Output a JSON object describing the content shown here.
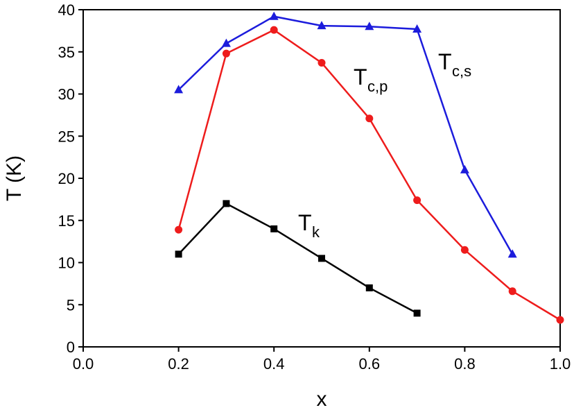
{
  "chart_data": {
    "type": "line",
    "x_label": "x",
    "y_label": "T (K)",
    "xlim": [
      0,
      1
    ],
    "xticks": [
      {
        "value": 0,
        "label": "0.0"
      },
      0.2,
      0.4,
      0.6,
      0.8,
      {
        "value": 1,
        "label": "1.0"
      }
    ],
    "ylim": [
      0,
      40
    ],
    "yticks": [
      0,
      5,
      10,
      15,
      20,
      25,
      30,
      35,
      40
    ],
    "series": [
      {
        "label": "T",
        "label_sub": "k",
        "color": "#000000",
        "marker": "square",
        "x": [
          0.2,
          0.3,
          0.4,
          0.5,
          0.6,
          0.7
        ],
        "values": [
          11,
          17,
          14,
          10.5,
          7,
          4
        ]
      },
      {
        "label": "T",
        "label_sub": "c,p",
        "color": "#ee1c1c",
        "marker": "circle",
        "x": [
          0.2,
          0.3,
          0.4,
          0.5,
          0.6,
          0.7,
          0.8,
          0.9,
          1.0
        ],
        "values": [
          13.9,
          34.8,
          37.6,
          33.7,
          27.1,
          17.4,
          11.5,
          6.6,
          3.2
        ]
      },
      {
        "label": "T",
        "label_sub": "c,s",
        "color": "#1c1cdc",
        "marker": "triangle",
        "x": [
          0.2,
          0.3,
          0.4,
          0.5,
          0.6,
          0.7,
          0.8,
          0.9
        ],
        "values": [
          30.5,
          36,
          39.2,
          38.1,
          38,
          37.7,
          21,
          11
        ]
      }
    ]
  }
}
